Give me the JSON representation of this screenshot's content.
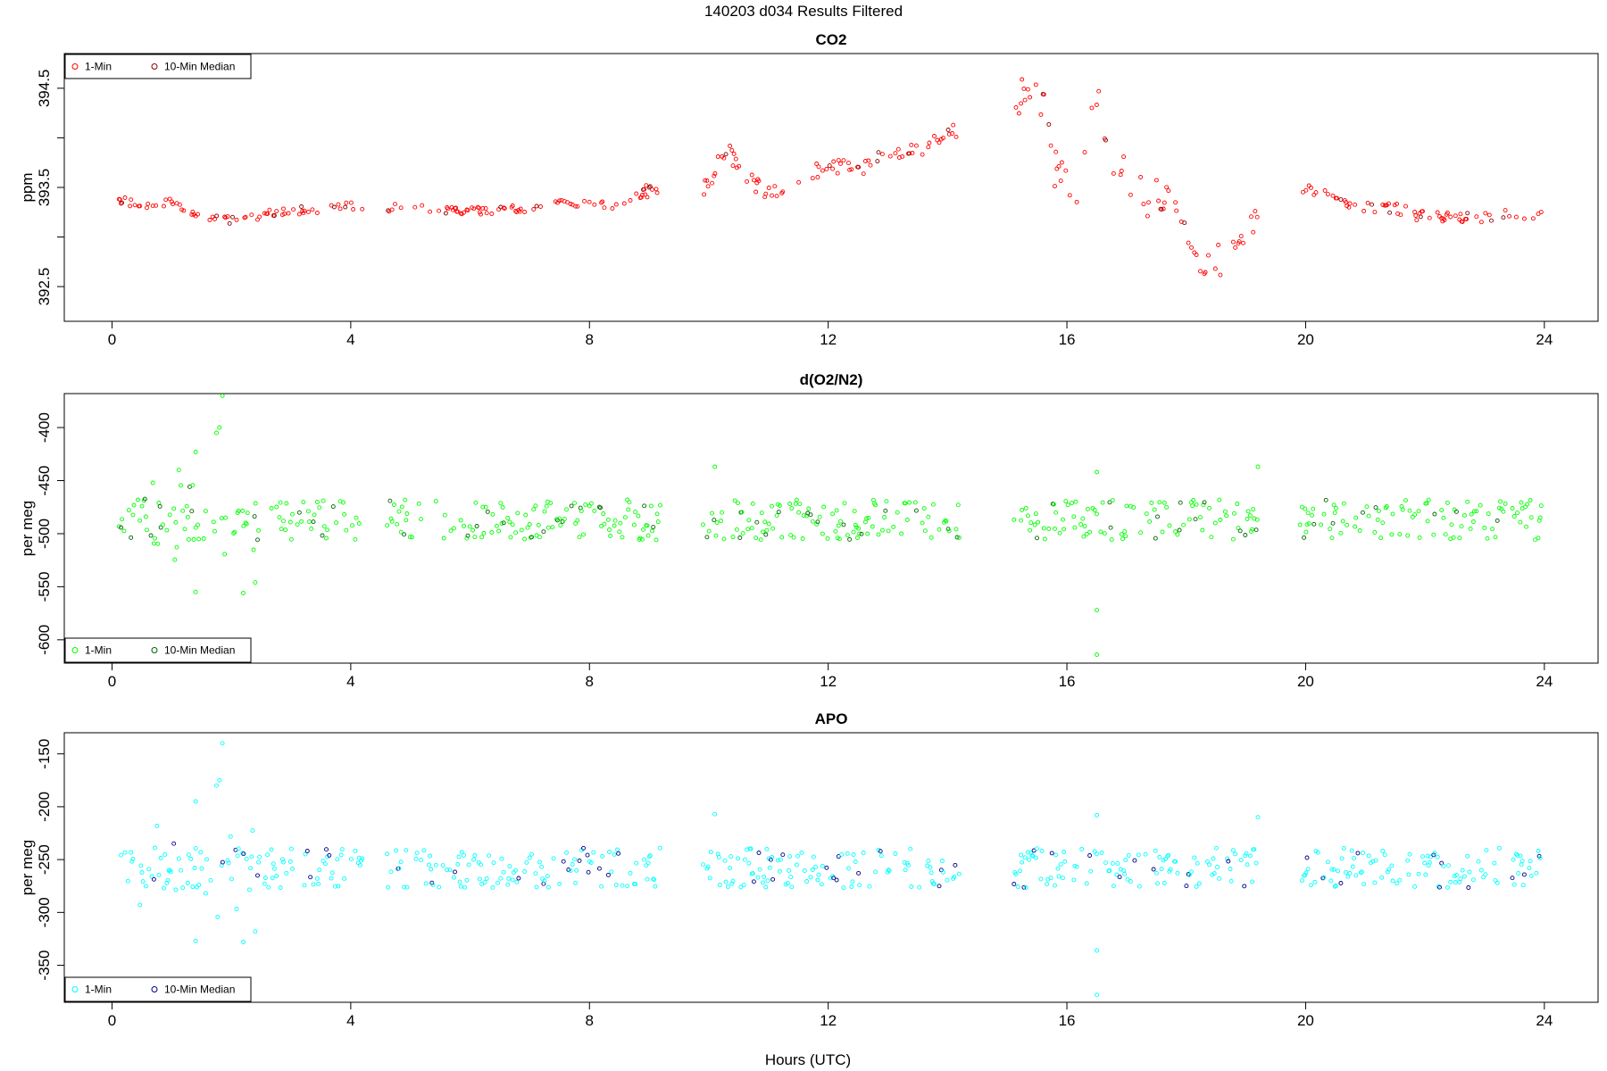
{
  "figure": {
    "title": "140203   d034   Results Filtered",
    "xlabel": "Hours (UTC)"
  },
  "chart_data": [
    {
      "type": "scatter",
      "title": "CO2",
      "ylabel": "ppm",
      "xlim": [
        -0.8,
        24.9
      ],
      "ylim": [
        392.15,
        394.85
      ],
      "xticks": [
        0,
        4,
        8,
        12,
        16,
        20,
        24
      ],
      "yticks": [
        392.5,
        393,
        393.5,
        394,
        394.5
      ],
      "ytick_labels": [
        "392.5",
        "",
        "393.5",
        "",
        "394.5"
      ],
      "legend": {
        "placement": "top-left",
        "entries": [
          "1-Min",
          "10-Min Median"
        ]
      },
      "series": [
        {
          "name": "1-Min",
          "color": "#ff0000",
          "trend": [
            [
              0.1,
              393.38
            ],
            [
              0.5,
              393.32
            ],
            [
              1,
              393.35
            ],
            [
              1.5,
              393.22
            ],
            [
              2,
              393.17
            ],
            [
              2.5,
              393.22
            ],
            [
              3,
              393.27
            ],
            [
              3.5,
              393.26
            ],
            [
              4,
              393.32
            ],
            [
              4.2,
              393.29
            ],
            [
              4.6,
              393.28
            ],
            [
              5,
              393.33
            ],
            [
              5.5,
              393.27
            ],
            [
              6,
              393.26
            ],
            [
              6.5,
              393.28
            ],
            [
              7,
              393.27
            ],
            [
              7.5,
              393.35
            ],
            [
              8,
              393.34
            ],
            [
              8.5,
              393.3
            ],
            [
              8.8,
              393.42
            ],
            [
              9.2,
              393.5
            ],
            [
              9.9,
              393.45
            ],
            [
              10.3,
              393.9
            ],
            [
              10.6,
              393.6
            ],
            [
              11,
              393.45
            ],
            [
              11.5,
              393.55
            ],
            [
              12,
              393.75
            ],
            [
              12.5,
              393.65
            ],
            [
              13,
              393.85
            ],
            [
              13.5,
              393.85
            ],
            [
              14,
              394.05
            ],
            [
              14.2,
              394.1
            ],
            [
              15.2,
              394.4
            ],
            [
              15.6,
              394.4
            ],
            [
              15.8,
              393.7
            ],
            [
              16.2,
              393.5
            ],
            [
              16.5,
              394.5
            ],
            [
              16.8,
              393.7
            ],
            [
              17.3,
              393.4
            ],
            [
              17.8,
              393.4
            ],
            [
              18.2,
              392.6
            ],
            [
              18.6,
              392.8
            ],
            [
              19,
              393.1
            ],
            [
              19.2,
              393.3
            ],
            [
              20,
              393.45
            ],
            [
              20.3,
              393.5
            ],
            [
              20.8,
              393.3
            ],
            [
              21.5,
              393.3
            ],
            [
              22,
              393.2
            ],
            [
              22.5,
              393.2
            ],
            [
              23,
              393.2
            ],
            [
              23.5,
              393.25
            ],
            [
              23.9,
              393.2
            ]
          ],
          "jitter": [
            0.04,
            0.06,
            0.08,
            0.12,
            0.2
          ]
        },
        {
          "name": "10-Min Median",
          "color": "#8b0000"
        }
      ],
      "gaps": [
        [
          4.2,
          4.6
        ],
        [
          9.2,
          9.9
        ],
        [
          14.2,
          15.1
        ],
        [
          19.2,
          19.9
        ]
      ]
    },
    {
      "type": "scatter",
      "title": "d(O2/N2)",
      "ylabel": "per meg",
      "xlim": [
        -0.8,
        24.9
      ],
      "ylim": [
        -622,
        -368
      ],
      "xticks": [
        0,
        4,
        8,
        12,
        16,
        20,
        24
      ],
      "yticks": [
        -400,
        -450,
        -500,
        -550,
        -600
      ],
      "ytick_labels": [
        "-400",
        "-450",
        "-500",
        "-550",
        "-600"
      ],
      "legend": {
        "placement": "bottom-left",
        "entries": [
          "1-Min",
          "10-Min Median"
        ]
      },
      "series": [
        {
          "name": "1-Min",
          "color": "#00ff00",
          "center": -487
        },
        {
          "name": "10-Min Median",
          "color": "#006400"
        }
      ],
      "outliers": [
        [
          1.8,
          -400
        ],
        [
          1.75,
          -405
        ],
        [
          1.85,
          -370
        ],
        [
          1.4,
          -423
        ],
        [
          1.4,
          -555
        ],
        [
          2.2,
          -556
        ],
        [
          2.4,
          -546
        ],
        [
          10.1,
          -437
        ],
        [
          16.5,
          -442
        ],
        [
          16.5,
          -572
        ],
        [
          16.5,
          -614
        ],
        [
          19.2,
          -437
        ]
      ]
    },
    {
      "type": "scatter",
      "title": "APO",
      "ylabel": "per meg",
      "xlim": [
        -0.8,
        24.9
      ],
      "ylim": [
        -385,
        -130
      ],
      "xticks": [
        0,
        4,
        8,
        12,
        16,
        20,
        24
      ],
      "yticks": [
        -150,
        -200,
        -250,
        -300,
        -350
      ],
      "ytick_labels": [
        "-150",
        "-200",
        "-250",
        "-300",
        "-350"
      ],
      "legend": {
        "placement": "bottom-left",
        "entries": [
          "1-Min",
          "10-Min Median"
        ]
      },
      "series": [
        {
          "name": "1-Min",
          "color": "#00ffff",
          "center": -258
        },
        {
          "name": "10-Min Median",
          "color": "#00008b"
        }
      ],
      "outliers": [
        [
          1.8,
          -175
        ],
        [
          1.75,
          -180
        ],
        [
          1.85,
          -140
        ],
        [
          1.4,
          -195
        ],
        [
          1.4,
          -327
        ],
        [
          2.2,
          -328
        ],
        [
          2.4,
          -318
        ],
        [
          10.1,
          -207
        ],
        [
          16.5,
          -208
        ],
        [
          16.5,
          -336
        ],
        [
          16.5,
          -378
        ],
        [
          19.2,
          -210
        ]
      ]
    }
  ]
}
